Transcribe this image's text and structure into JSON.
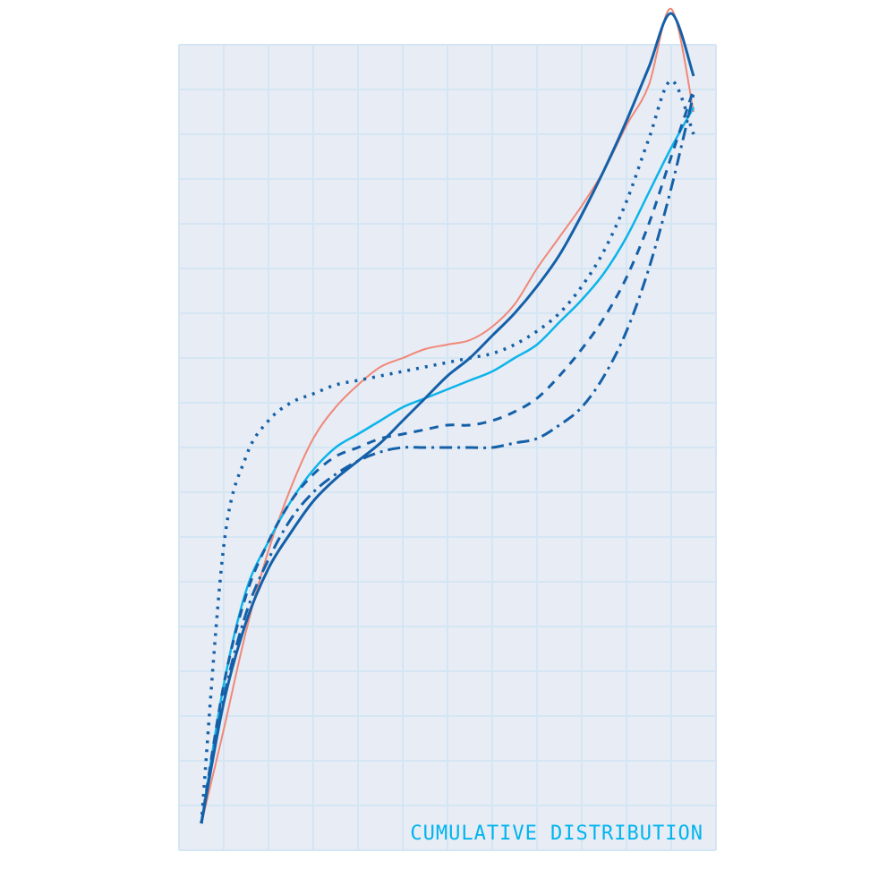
{
  "chart_data": {
    "type": "line",
    "title": "",
    "xlabel": "",
    "ylabel": "",
    "annotation": "CUMULATIVE DISTRIBUTION",
    "xlim": [
      0,
      12
    ],
    "ylim": [
      0,
      18
    ],
    "grid": true,
    "background": "#e8ecf4",
    "grid_color": "#d4e6f4",
    "series": [
      {
        "color": "#f08878",
        "stroke_width": 2,
        "dash": "",
        "x": [
          0.5,
          1,
          1.5,
          2,
          2.5,
          3,
          3.5,
          4,
          4.5,
          5,
          5.5,
          6,
          6.5,
          7,
          7.5,
          8,
          8.5,
          9,
          9.5,
          10,
          10.5,
          11,
          11.5
        ],
        "y": [
          0.6,
          2.7,
          4.9,
          6.7,
          8.1,
          9.2,
          9.9,
          10.4,
          10.8,
          11.0,
          11.2,
          11.3,
          11.4,
          11.7,
          12.2,
          13.0,
          13.7,
          14.4,
          15.2,
          16.2,
          17.1,
          18.8,
          16.5
        ]
      },
      {
        "color": "#0cb4ea",
        "stroke_width": 2.5,
        "dash": "",
        "x": [
          0.5,
          1,
          1.5,
          2,
          2.5,
          3,
          3.5,
          4,
          4.5,
          5,
          5.5,
          6,
          6.5,
          7,
          7.5,
          8,
          8.5,
          9,
          9.5,
          10,
          10.5,
          11,
          11.5
        ],
        "y": [
          0.6,
          3.7,
          5.8,
          6.9,
          7.8,
          8.5,
          9.0,
          9.3,
          9.6,
          9.9,
          10.1,
          10.3,
          10.5,
          10.7,
          11.0,
          11.3,
          11.8,
          12.3,
          12.9,
          13.7,
          14.7,
          15.7,
          16.6
        ]
      },
      {
        "color": "#1460a8",
        "stroke_width": 3,
        "dash": "",
        "x": [
          0.5,
          1,
          1.5,
          2,
          2.5,
          3,
          3.5,
          4,
          4.5,
          5,
          5.5,
          6,
          6.5,
          7,
          7.5,
          8,
          8.5,
          9,
          9.5,
          10,
          10.5,
          11,
          11.5
        ],
        "y": [
          0.6,
          3.3,
          5.1,
          6.3,
          7.1,
          7.8,
          8.3,
          8.7,
          9.1,
          9.6,
          10.1,
          10.6,
          11.0,
          11.5,
          12.0,
          12.6,
          13.3,
          14.2,
          15.2,
          16.3,
          17.5,
          18.7,
          17.3
        ]
      },
      {
        "color": "#1460a8",
        "stroke_width": 3,
        "dash": "10 8",
        "x": [
          0.5,
          1,
          1.5,
          2,
          2.5,
          3,
          3.5,
          4,
          4.5,
          5,
          5.5,
          6,
          6.5,
          7,
          7.5,
          8,
          8.5,
          9,
          9.5,
          10,
          10.5,
          11,
          11.5
        ],
        "y": [
          0.6,
          3.7,
          5.7,
          6.9,
          7.8,
          8.4,
          8.8,
          9.0,
          9.2,
          9.3,
          9.4,
          9.5,
          9.5,
          9.6,
          9.8,
          10.1,
          10.6,
          11.2,
          11.9,
          12.8,
          14.0,
          15.5,
          17.0
        ]
      },
      {
        "color": "#1460a8",
        "stroke_width": 3,
        "dash": "14 6 3 6",
        "x": [
          0.5,
          1,
          1.5,
          2,
          2.5,
          3,
          3.5,
          4,
          4.5,
          5,
          5.5,
          6,
          6.5,
          7,
          7.5,
          8,
          8.5,
          9,
          9.5,
          10,
          10.5,
          11,
          11.5
        ],
        "y": [
          0.6,
          3.4,
          5.3,
          6.5,
          7.4,
          8.0,
          8.4,
          8.7,
          8.9,
          9.0,
          9.0,
          9.0,
          9.0,
          9.0,
          9.1,
          9.2,
          9.5,
          9.9,
          10.6,
          11.6,
          13.0,
          14.8,
          16.9
        ]
      },
      {
        "color": "#1460a8",
        "stroke_width": 3.5,
        "dash": "3 7",
        "x": [
          0.5,
          1,
          1.5,
          2,
          2.5,
          3,
          3.5,
          4,
          4.5,
          5,
          5.5,
          6,
          6.5,
          7,
          7.5,
          8,
          8.5,
          9,
          9.5,
          10,
          10.5,
          11,
          11.5
        ],
        "y": [
          0.6,
          6.8,
          8.8,
          9.6,
          10.0,
          10.2,
          10.4,
          10.5,
          10.6,
          10.7,
          10.8,
          10.9,
          11.0,
          11.1,
          11.3,
          11.6,
          12.0,
          12.6,
          13.4,
          14.5,
          15.9,
          17.2,
          16.0
        ]
      }
    ]
  }
}
